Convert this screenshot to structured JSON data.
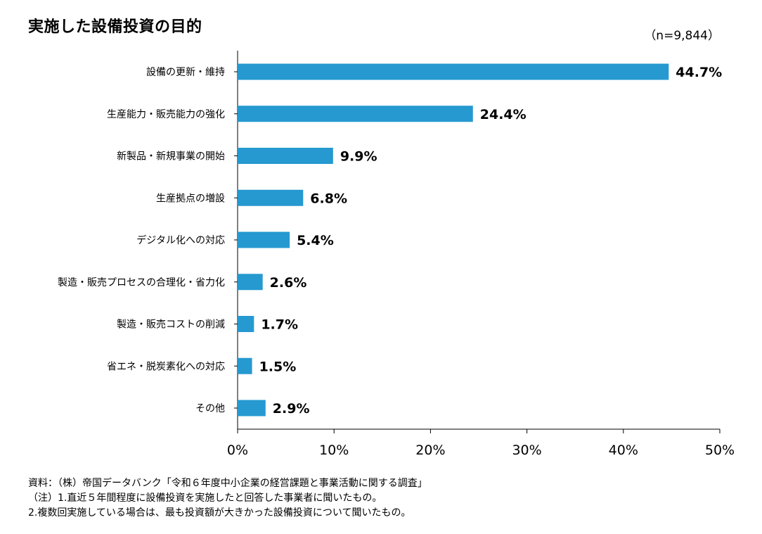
{
  "header": {
    "title": "実施した設備投資の目的",
    "sample_size": "（n=9,844）"
  },
  "chart_data": {
    "type": "bar",
    "orientation": "horizontal",
    "categories": [
      "設備の更新・維持",
      "生産能力・販売能力の強化",
      "新製品・新規事業の開始",
      "生産拠点の増設",
      "デジタル化への対応",
      "製造・販売プロセスの合理化・省力化",
      "製造・販売コストの削減",
      "省エネ・脱炭素化への対応",
      "その他"
    ],
    "values": [
      44.7,
      24.4,
      9.9,
      6.8,
      5.4,
      2.6,
      1.7,
      1.5,
      2.9
    ],
    "value_labels": [
      "44.7%",
      "24.4%",
      "9.9%",
      "6.8%",
      "5.4%",
      "2.6%",
      "1.7%",
      "1.5%",
      "2.9%"
    ],
    "xlim": [
      0,
      50
    ],
    "x_ticks": [
      0,
      10,
      20,
      30,
      40,
      50
    ],
    "x_tick_labels": [
      "0%",
      "10%",
      "20%",
      "30%",
      "40%",
      "50%"
    ],
    "bar_color": "#2599d0",
    "grid": false,
    "legend": "none"
  },
  "footer": {
    "notes": [
      "資料：（株）帝国データバンク「令和６年度中小企業の経営課題と事業活動に関する調査」",
      "（注）1.直近５年間程度に設備投資を実施したと回答した事業者に聞いたもの。",
      "2.複数回実施している場合は、最も投資額が大きかった設備投資について聞いたもの。"
    ]
  }
}
